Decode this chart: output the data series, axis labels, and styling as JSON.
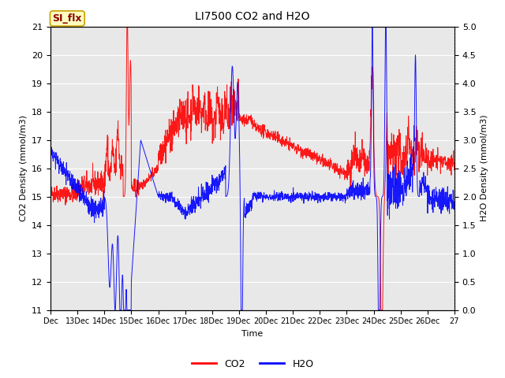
{
  "title": "LI7500 CO2 and H2O",
  "xlabel": "Time",
  "ylabel_left": "CO2 Density (mmol/m3)",
  "ylabel_right": "H2O Density (mmol/m3)",
  "ylim_left": [
    11.0,
    21.0
  ],
  "ylim_right": [
    0.0,
    5.0
  ],
  "annotation_text": "SI_flx",
  "annotation_bg": "#ffffc0",
  "annotation_border": "#c8a000",
  "annotation_text_color": "#8b0000",
  "co2_color": "red",
  "h2o_color": "blue",
  "bg_color": "#e8e8e8",
  "grid_color": "white",
  "xtick_labels": [
    "Dec",
    "13Dec",
    "14Dec",
    "15Dec",
    "16Dec",
    "17Dec",
    "18Dec",
    "19Dec",
    "20Dec",
    "21Dec",
    "22Dec",
    "23Dec",
    "24Dec",
    "25Dec",
    "26Dec",
    "27"
  ],
  "n_points": 2000,
  "date_start": 12,
  "date_end": 27
}
